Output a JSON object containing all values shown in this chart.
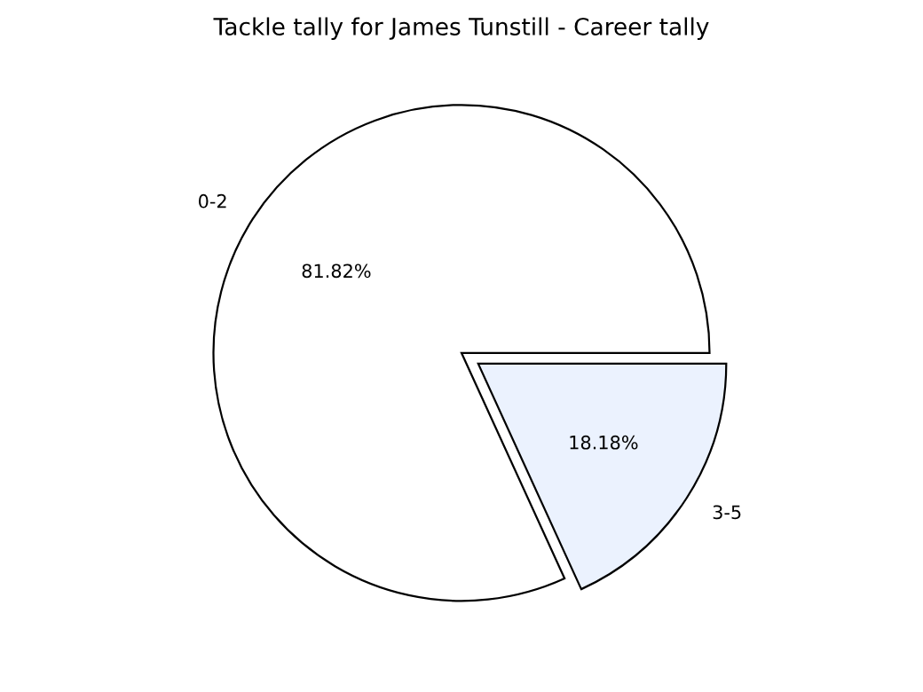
{
  "chart_data": {
    "type": "pie",
    "title": "Tackle tally for James Tunstill - Career tally",
    "categories": [
      "0-2",
      "3-5"
    ],
    "values": [
      81.82,
      18.18
    ],
    "value_labels": [
      "81.82%",
      "18.18%"
    ],
    "colors": [
      "#ffffff",
      "#ebf2fe"
    ]
  }
}
